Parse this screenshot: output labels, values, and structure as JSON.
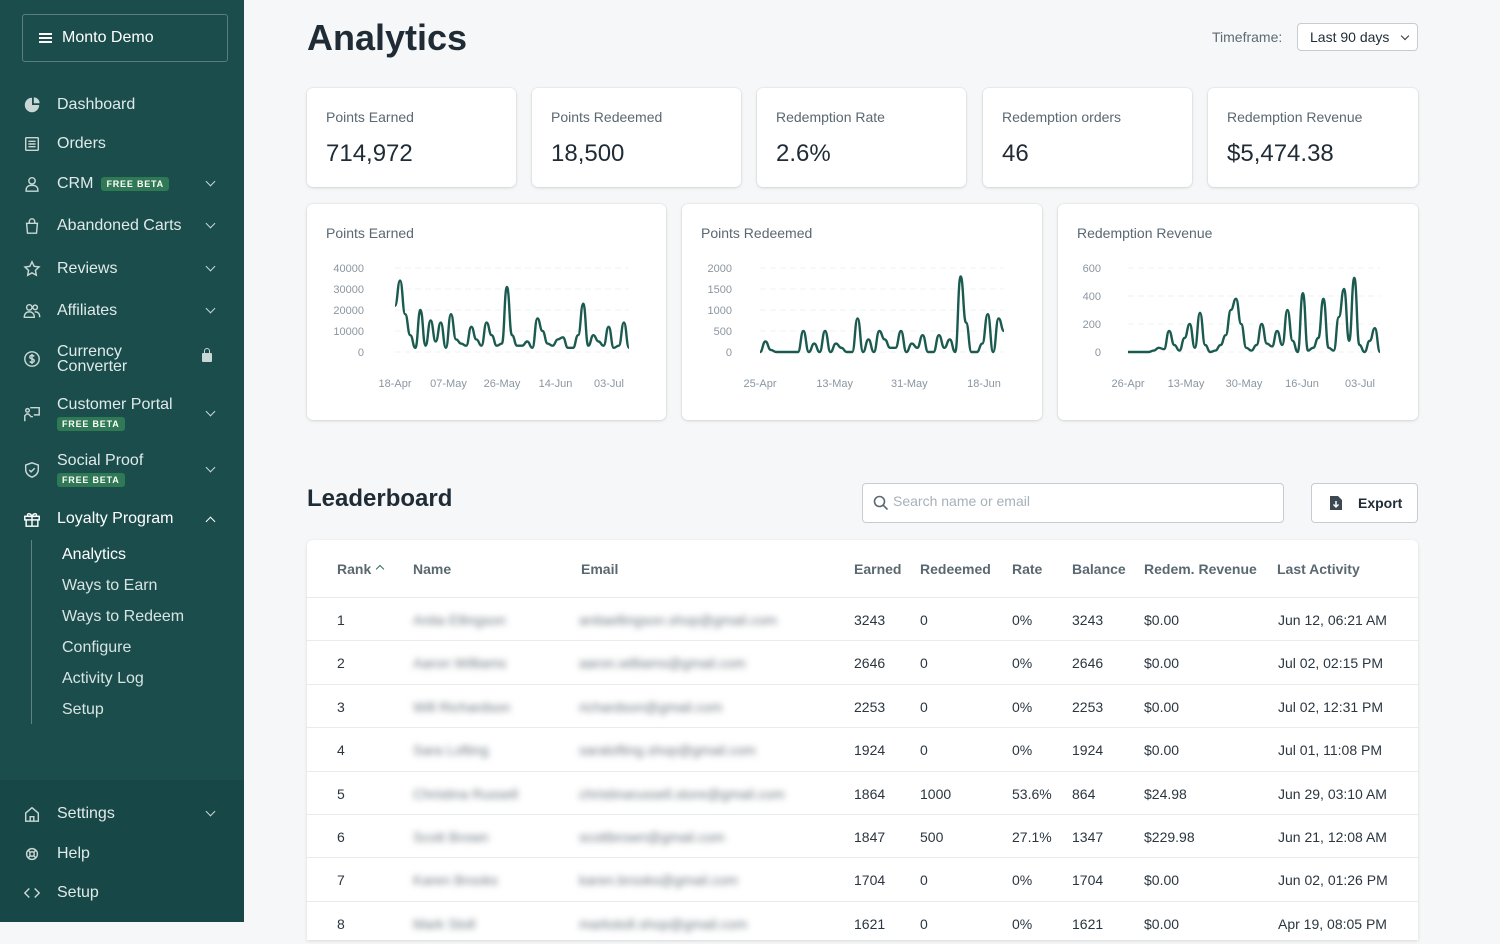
{
  "sidebar": {
    "store_name": "Monto Demo",
    "nav": [
      {
        "label": "Dashboard",
        "icon": "pie-chart-icon"
      },
      {
        "label": "Orders",
        "icon": "list-icon"
      },
      {
        "label": "CRM",
        "badge": "FREE BETA",
        "icon": "user-icon"
      },
      {
        "label": "Abandoned Carts",
        "icon": "bag-icon"
      },
      {
        "label": "Reviews",
        "icon": "star-icon"
      },
      {
        "label": "Affiliates",
        "icon": "users-icon"
      },
      {
        "label": "Currency Converter",
        "icon": "dollar-icon"
      },
      {
        "label": "Customer Portal",
        "badge": "FREE BETA",
        "icon": "portal-icon"
      },
      {
        "label": "Social Proof",
        "badge": "FREE BETA",
        "icon": "shield-icon"
      },
      {
        "label": "Loyalty Program",
        "icon": "gift-icon"
      }
    ],
    "sub_nav": [
      "Analytics",
      "Ways to Earn",
      "Ways to Redeem",
      "Configure",
      "Activity Log",
      "Setup"
    ],
    "bottom": [
      {
        "label": "Settings",
        "icon": "home-icon"
      },
      {
        "label": "Help",
        "icon": "help-icon"
      },
      {
        "label": "Setup",
        "icon": "code-icon"
      }
    ]
  },
  "header": {
    "title": "Analytics",
    "timeframe_label": "Timeframe:",
    "timeframe_value": "Last 90 days"
  },
  "stats": [
    {
      "label": "Points Earned",
      "value": "714,972"
    },
    {
      "label": "Points Redeemed",
      "value": "18,500"
    },
    {
      "label": "Redemption Rate",
      "value": "2.6%"
    },
    {
      "label": "Redemption orders",
      "value": "46"
    },
    {
      "label": "Redemption Revenue",
      "value": "$5,474.38"
    }
  ],
  "chart_data": [
    {
      "type": "line",
      "title": "Points Earned",
      "yticks": [
        "40000",
        "30000",
        "20000",
        "10000",
        "0"
      ],
      "ylim": [
        0,
        40000
      ],
      "xticks": [
        "18-Apr",
        "07-May",
        "26-May",
        "14-Jun",
        "03-Jul"
      ],
      "color": "#1b5a4f",
      "values": [
        22000,
        34000,
        18000,
        8000,
        2000,
        20000,
        3000,
        15000,
        5000,
        14000,
        2000,
        18000,
        6000,
        4000,
        3000,
        12000,
        6000,
        3000,
        14000,
        8000,
        3000,
        4000,
        31000,
        8000,
        3000,
        3000,
        5000,
        2000,
        16000,
        10000,
        4000,
        3000,
        6000,
        7000,
        2000,
        2000,
        8000,
        23000,
        3000,
        8000,
        5000,
        3000,
        12000,
        2000,
        3000,
        14000,
        2000
      ]
    },
    {
      "type": "line",
      "title": "Points Redeemed",
      "yticks": [
        "2000",
        "1500",
        "1000",
        "500",
        "0"
      ],
      "ylim": [
        0,
        2000
      ],
      "xticks": [
        "25-Apr",
        "13-May",
        "31-May",
        "18-Jun"
      ],
      "color": "#1b5a4f",
      "values": [
        0,
        250,
        50,
        0,
        0,
        0,
        0,
        0,
        500,
        0,
        200,
        0,
        500,
        0,
        200,
        100,
        0,
        0,
        800,
        0,
        300,
        0,
        500,
        300,
        100,
        100,
        500,
        0,
        200,
        100,
        400,
        0,
        0,
        400,
        100,
        300,
        0,
        1800,
        700,
        0,
        0,
        200,
        900,
        0,
        800,
        500
      ]
    },
    {
      "type": "line",
      "title": "Redemption Revenue",
      "yticks": [
        "600",
        "400",
        "200",
        "0"
      ],
      "ylim": [
        0,
        600
      ],
      "xticks": [
        "26-Apr",
        "13-May",
        "30-May",
        "16-Jun",
        "03-Jul"
      ],
      "color": "#1b5a4f",
      "values": [
        0,
        0,
        0,
        0,
        0,
        10,
        30,
        20,
        150,
        50,
        10,
        100,
        200,
        30,
        280,
        50,
        0,
        10,
        50,
        120,
        300,
        380,
        200,
        30,
        10,
        50,
        200,
        60,
        40,
        150,
        50,
        300,
        80,
        0,
        420,
        10,
        30,
        100,
        380,
        30,
        10,
        250,
        450,
        80,
        530,
        50,
        0,
        80,
        170,
        0
      ]
    }
  ],
  "leaderboard": {
    "title": "Leaderboard",
    "search_placeholder": "Search name or email",
    "export_label": "Export",
    "columns": [
      "Rank",
      "Name",
      "Email",
      "Earned",
      "Redeemed",
      "Rate",
      "Balance",
      "Redem. Revenue",
      "Last Activity"
    ],
    "rows": [
      {
        "rank": "1",
        "name": "Anita Ellingson",
        "email": "anitaellingson.shop@gmail.com",
        "earned": "3243",
        "redeemed": "0",
        "rate": "0%",
        "balance": "3243",
        "revenue": "$0.00",
        "last": "Jun 12, 06:21 AM"
      },
      {
        "rank": "2",
        "name": "Aaron Williams",
        "email": "aaron.williams@gmail.com",
        "earned": "2646",
        "redeemed": "0",
        "rate": "0%",
        "balance": "2646",
        "revenue": "$0.00",
        "last": "Jul 02, 02:15 PM"
      },
      {
        "rank": "3",
        "name": "Will Richardson",
        "email": "richardson@gmail.com",
        "earned": "2253",
        "redeemed": "0",
        "rate": "0%",
        "balance": "2253",
        "revenue": "$0.00",
        "last": "Jul 02, 12:31 PM"
      },
      {
        "rank": "4",
        "name": "Sara Lofting",
        "email": "saralofting.shop@gmail.com",
        "earned": "1924",
        "redeemed": "0",
        "rate": "0%",
        "balance": "1924",
        "revenue": "$0.00",
        "last": "Jul 01, 11:08 PM"
      },
      {
        "rank": "5",
        "name": "Christina Russell",
        "email": "christinarussell.store@gmail.com",
        "earned": "1864",
        "redeemed": "1000",
        "rate": "53.6%",
        "balance": "864",
        "revenue": "$24.98",
        "last": "Jun 29, 03:10 AM"
      },
      {
        "rank": "6",
        "name": "Scott Brown",
        "email": "scottbrown@gmail.com",
        "earned": "1847",
        "redeemed": "500",
        "rate": "27.1%",
        "balance": "1347",
        "revenue": "$229.98",
        "last": "Jun 21, 12:08 AM"
      },
      {
        "rank": "7",
        "name": "Karen Brooks",
        "email": "karen.brooks@gmail.com",
        "earned": "1704",
        "redeemed": "0",
        "rate": "0%",
        "balance": "1704",
        "revenue": "$0.00",
        "last": "Jun 02, 01:26 PM"
      },
      {
        "rank": "8",
        "name": "Mark Stoll",
        "email": "markstoll.shop@gmail.com",
        "earned": "1621",
        "redeemed": "0",
        "rate": "0%",
        "balance": "1621",
        "revenue": "$0.00",
        "last": "Apr 19, 08:05 PM"
      }
    ]
  }
}
